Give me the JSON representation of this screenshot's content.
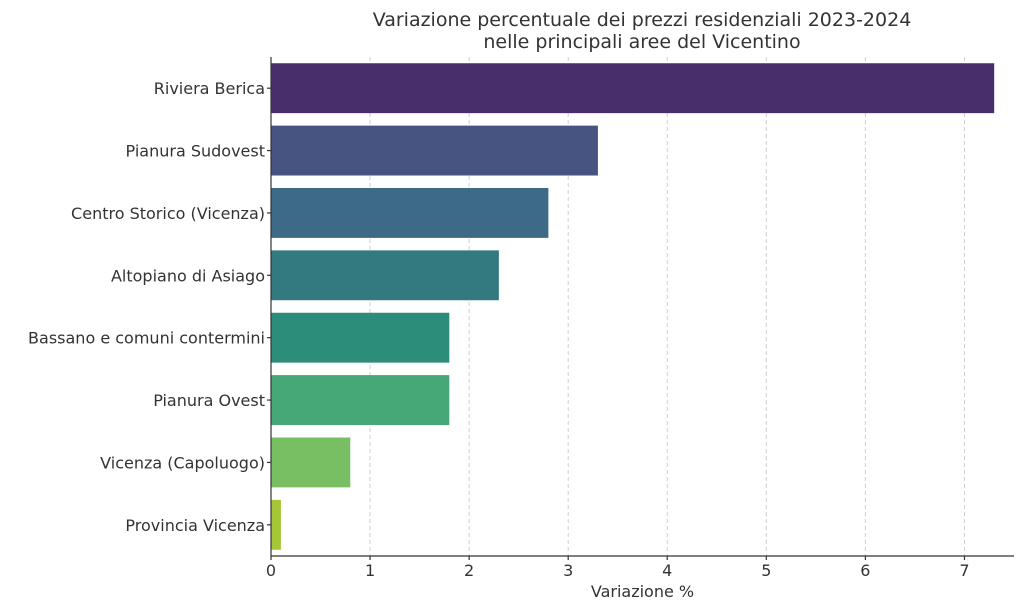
{
  "chart_data": {
    "type": "bar",
    "orientation": "horizontal",
    "title": "Variazione percentuale dei prezzi residenziali 2023-2024\nnelle principali aree del Vicentino",
    "xlabel": "Variazione %",
    "ylabel": "",
    "xlim": [
      0,
      7.5
    ],
    "xticks": [
      0,
      1,
      2,
      3,
      4,
      5,
      6,
      7
    ],
    "grid": "x-dashed",
    "categories": [
      "Riviera Berica",
      "Pianura Sudovest",
      "Centro Storico (Vicenza)",
      "Altopiano di Asiago",
      "Bassano e comuni contermini",
      "Pianura Ovest",
      "Vicenza (Capoluogo)",
      "Provincia Vicenza"
    ],
    "values": [
      7.3,
      3.3,
      2.8,
      2.3,
      1.8,
      1.8,
      0.8,
      0.1
    ],
    "colors": [
      "#482f6b",
      "#475381",
      "#3d6a86",
      "#337a80",
      "#2b8d7a",
      "#46a777",
      "#78bf63",
      "#a4c637"
    ]
  }
}
